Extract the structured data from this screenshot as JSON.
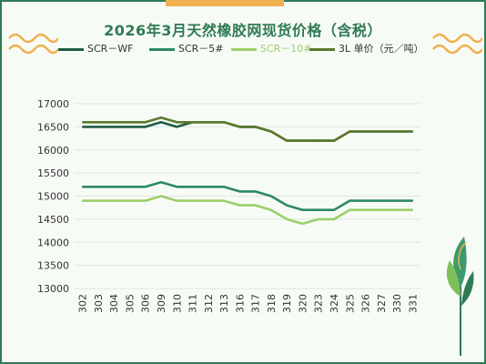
{
  "title": "2026年3月天然橡胶网现货价格（含税）",
  "colors": {
    "frame": "#2f7a55",
    "accent": "#f0b050",
    "grid": "#e3e3e3",
    "wf": "#1f5c44",
    "s5": "#2d8a62",
    "s10": "#9ccf6b",
    "jr": "#5c7a2e"
  },
  "chart_data": {
    "type": "line",
    "title": "2026年3月天然橡胶网现货价格（含税）",
    "xlabel": "",
    "ylabel": "",
    "ylim": [
      13000,
      17000
    ],
    "yticks": [
      13000,
      13500,
      14000,
      14500,
      15000,
      15500,
      16000,
      16500,
      17000
    ],
    "grid": true,
    "legend_position": "top",
    "x": [
      "302",
      "303",
      "304",
      "305",
      "306",
      "309",
      "310",
      "311",
      "312",
      "313",
      "316",
      "317",
      "318",
      "319",
      "320",
      "323",
      "324",
      "325",
      "326",
      "327",
      "330",
      "331"
    ],
    "series": [
      {
        "name": "SCR－WF",
        "color": "#1f5c44",
        "values": [
          16500,
          16500,
          16500,
          16500,
          16500,
          16600,
          16500,
          16600,
          16600,
          16600,
          16500,
          16500,
          16400,
          16200,
          16200,
          16200,
          16200,
          16400,
          16400,
          16400,
          16400,
          16400
        ]
      },
      {
        "name": "SCR－5#",
        "color": "#2d8a62",
        "values": [
          15200,
          15200,
          15200,
          15200,
          15200,
          15300,
          15200,
          15200,
          15200,
          15200,
          15100,
          15100,
          15000,
          14800,
          14700,
          14700,
          14700,
          14900,
          14900,
          14900,
          14900,
          14900
        ]
      },
      {
        "name": "SCR－10#",
        "color": "#9ccf6b",
        "values": [
          14900,
          14900,
          14900,
          14900,
          14900,
          15000,
          14900,
          14900,
          14900,
          14900,
          14800,
          14800,
          14700,
          14500,
          14400,
          14500,
          14500,
          14700,
          14700,
          14700,
          14700,
          14700
        ]
      },
      {
        "name": "3L 单价（元／吨）",
        "color": "#5c7a2e",
        "values": [
          16600,
          16600,
          16600,
          16600,
          16600,
          16700,
          16600,
          16600,
          16600,
          16600,
          16500,
          16500,
          16400,
          16200,
          16200,
          16200,
          16200,
          16400,
          16400,
          16400,
          16400,
          16400
        ]
      }
    ]
  }
}
